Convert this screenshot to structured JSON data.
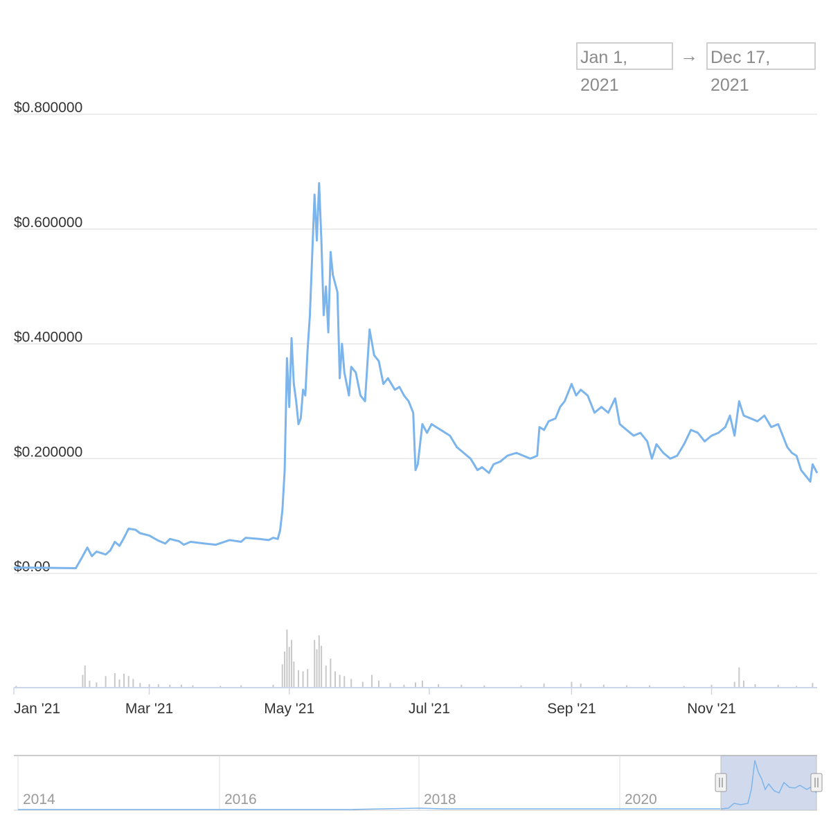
{
  "date_range": {
    "from": "Jan 1, 2021",
    "arrow": "→",
    "to": "Dec 17, 2021"
  },
  "chart_data": {
    "type": "line",
    "x_range": [
      "2021-01-01",
      "2021-12-17"
    ],
    "ylim": [
      0,
      0.8
    ],
    "y_ticks": [
      {
        "value": 0,
        "label": "$0.00"
      },
      {
        "value": 0.2,
        "label": "$0.200000"
      },
      {
        "value": 0.4,
        "label": "$0.400000"
      },
      {
        "value": 0.6,
        "label": "$0.600000"
      },
      {
        "value": 0.8,
        "label": "$0.800000"
      }
    ],
    "x_ticks": [
      {
        "date": "2021-01-01",
        "label": "Jan '21"
      },
      {
        "date": "2021-03-01",
        "label": "Mar '21"
      },
      {
        "date": "2021-05-01",
        "label": "May '21"
      },
      {
        "date": "2021-07-01",
        "label": "Jul '21"
      },
      {
        "date": "2021-09-01",
        "label": "Sep '21"
      },
      {
        "date": "2021-11-01",
        "label": "Nov '21"
      }
    ],
    "grid": true,
    "line_color": "#7cb5ec",
    "series": [
      {
        "points": [
          [
            "2021-01-01",
            0.01
          ],
          [
            "2021-01-10",
            0.01
          ],
          [
            "2021-01-28",
            0.009
          ],
          [
            "2021-01-31",
            0.03
          ],
          [
            "2021-02-02",
            0.045
          ],
          [
            "2021-02-04",
            0.03
          ],
          [
            "2021-02-06",
            0.038
          ],
          [
            "2021-02-10",
            0.033
          ],
          [
            "2021-02-12",
            0.04
          ],
          [
            "2021-02-14",
            0.055
          ],
          [
            "2021-02-16",
            0.048
          ],
          [
            "2021-02-18",
            0.062
          ],
          [
            "2021-02-20",
            0.078
          ],
          [
            "2021-02-23",
            0.076
          ],
          [
            "2021-02-25",
            0.07
          ],
          [
            "2021-03-01",
            0.066
          ],
          [
            "2021-03-05",
            0.057
          ],
          [
            "2021-03-08",
            0.052
          ],
          [
            "2021-03-10",
            0.06
          ],
          [
            "2021-03-14",
            0.056
          ],
          [
            "2021-03-16",
            0.05
          ],
          [
            "2021-03-19",
            0.055
          ],
          [
            "2021-03-25",
            0.052
          ],
          [
            "2021-03-30",
            0.05
          ],
          [
            "2021-04-05",
            0.058
          ],
          [
            "2021-04-10",
            0.055
          ],
          [
            "2021-04-12",
            0.062
          ],
          [
            "2021-04-18",
            0.06
          ],
          [
            "2021-04-22",
            0.058
          ],
          [
            "2021-04-24",
            0.062
          ],
          [
            "2021-04-26",
            0.06
          ],
          [
            "2021-04-27",
            0.075
          ],
          [
            "2021-04-28",
            0.11
          ],
          [
            "2021-04-29",
            0.18
          ],
          [
            "2021-04-30",
            0.375
          ],
          [
            "2021-05-01",
            0.29
          ],
          [
            "2021-05-02",
            0.41
          ],
          [
            "2021-05-03",
            0.33
          ],
          [
            "2021-05-04",
            0.3
          ],
          [
            "2021-05-05",
            0.26
          ],
          [
            "2021-05-06",
            0.27
          ],
          [
            "2021-05-07",
            0.32
          ],
          [
            "2021-05-08",
            0.31
          ],
          [
            "2021-05-09",
            0.39
          ],
          [
            "2021-05-10",
            0.45
          ],
          [
            "2021-05-12",
            0.66
          ],
          [
            "2021-05-13",
            0.58
          ],
          [
            "2021-05-14",
            0.68
          ],
          [
            "2021-05-15",
            0.58
          ],
          [
            "2021-05-16",
            0.45
          ],
          [
            "2021-05-17",
            0.5
          ],
          [
            "2021-05-18",
            0.42
          ],
          [
            "2021-05-19",
            0.56
          ],
          [
            "2021-05-20",
            0.52
          ],
          [
            "2021-05-22",
            0.49
          ],
          [
            "2021-05-23",
            0.34
          ],
          [
            "2021-05-24",
            0.4
          ],
          [
            "2021-05-25",
            0.35
          ],
          [
            "2021-05-27",
            0.31
          ],
          [
            "2021-05-28",
            0.36
          ],
          [
            "2021-05-30",
            0.35
          ],
          [
            "2021-06-01",
            0.31
          ],
          [
            "2021-06-03",
            0.3
          ],
          [
            "2021-06-05",
            0.425
          ],
          [
            "2021-06-07",
            0.38
          ],
          [
            "2021-06-09",
            0.37
          ],
          [
            "2021-06-11",
            0.33
          ],
          [
            "2021-06-13",
            0.34
          ],
          [
            "2021-06-16",
            0.32
          ],
          [
            "2021-06-18",
            0.325
          ],
          [
            "2021-06-20",
            0.31
          ],
          [
            "2021-06-22",
            0.3
          ],
          [
            "2021-06-24",
            0.28
          ],
          [
            "2021-06-25",
            0.18
          ],
          [
            "2021-06-26",
            0.19
          ],
          [
            "2021-06-28",
            0.26
          ],
          [
            "2021-06-30",
            0.245
          ],
          [
            "2021-07-02",
            0.26
          ],
          [
            "2021-07-06",
            0.25
          ],
          [
            "2021-07-10",
            0.24
          ],
          [
            "2021-07-13",
            0.22
          ],
          [
            "2021-07-16",
            0.21
          ],
          [
            "2021-07-19",
            0.2
          ],
          [
            "2021-07-22",
            0.18
          ],
          [
            "2021-07-24",
            0.185
          ],
          [
            "2021-07-27",
            0.175
          ],
          [
            "2021-07-29",
            0.19
          ],
          [
            "2021-08-01",
            0.195
          ],
          [
            "2021-08-04",
            0.205
          ],
          [
            "2021-08-08",
            0.21
          ],
          [
            "2021-08-11",
            0.205
          ],
          [
            "2021-08-14",
            0.2
          ],
          [
            "2021-08-17",
            0.205
          ],
          [
            "2021-08-18",
            0.255
          ],
          [
            "2021-08-20",
            0.25
          ],
          [
            "2021-08-22",
            0.265
          ],
          [
            "2021-08-25",
            0.27
          ],
          [
            "2021-08-27",
            0.29
          ],
          [
            "2021-08-29",
            0.3
          ],
          [
            "2021-09-01",
            0.33
          ],
          [
            "2021-09-03",
            0.31
          ],
          [
            "2021-09-05",
            0.32
          ],
          [
            "2021-09-08",
            0.31
          ],
          [
            "2021-09-11",
            0.28
          ],
          [
            "2021-09-14",
            0.29
          ],
          [
            "2021-09-17",
            0.28
          ],
          [
            "2021-09-20",
            0.305
          ],
          [
            "2021-09-22",
            0.26
          ],
          [
            "2021-09-25",
            0.25
          ],
          [
            "2021-09-28",
            0.24
          ],
          [
            "2021-10-01",
            0.245
          ],
          [
            "2021-10-04",
            0.23
          ],
          [
            "2021-10-06",
            0.2
          ],
          [
            "2021-10-08",
            0.225
          ],
          [
            "2021-10-11",
            0.21
          ],
          [
            "2021-10-14",
            0.2
          ],
          [
            "2021-10-17",
            0.205
          ],
          [
            "2021-10-20",
            0.225
          ],
          [
            "2021-10-23",
            0.25
          ],
          [
            "2021-10-26",
            0.245
          ],
          [
            "2021-10-29",
            0.23
          ],
          [
            "2021-11-01",
            0.24
          ],
          [
            "2021-11-04",
            0.245
          ],
          [
            "2021-11-07",
            0.255
          ],
          [
            "2021-11-09",
            0.275
          ],
          [
            "2021-11-11",
            0.24
          ],
          [
            "2021-11-13",
            0.3
          ],
          [
            "2021-11-15",
            0.275
          ],
          [
            "2021-11-18",
            0.27
          ],
          [
            "2021-11-21",
            0.265
          ],
          [
            "2021-11-24",
            0.275
          ],
          [
            "2021-11-27",
            0.255
          ],
          [
            "2021-11-30",
            0.26
          ],
          [
            "2021-12-02",
            0.24
          ],
          [
            "2021-12-04",
            0.22
          ],
          [
            "2021-12-06",
            0.21
          ],
          [
            "2021-12-08",
            0.205
          ],
          [
            "2021-12-10",
            0.18
          ],
          [
            "2021-12-12",
            0.17
          ],
          [
            "2021-12-14",
            0.16
          ],
          [
            "2021-12-15",
            0.19
          ],
          [
            "2021-12-17",
            0.175
          ]
        ]
      }
    ],
    "volume": {
      "bar_color": "#c8c8c8",
      "points": [
        [
          "2021-01-02",
          0.03
        ],
        [
          "2021-01-31",
          0.22
        ],
        [
          "2021-02-01",
          0.38
        ],
        [
          "2021-02-03",
          0.12
        ],
        [
          "2021-02-06",
          0.09
        ],
        [
          "2021-02-10",
          0.2
        ],
        [
          "2021-02-14",
          0.25
        ],
        [
          "2021-02-16",
          0.14
        ],
        [
          "2021-02-18",
          0.24
        ],
        [
          "2021-02-20",
          0.2
        ],
        [
          "2021-02-22",
          0.15
        ],
        [
          "2021-02-25",
          0.08
        ],
        [
          "2021-03-01",
          0.06
        ],
        [
          "2021-03-05",
          0.06
        ],
        [
          "2021-03-10",
          0.05
        ],
        [
          "2021-03-15",
          0.05
        ],
        [
          "2021-03-20",
          0.04
        ],
        [
          "2021-04-01",
          0.03
        ],
        [
          "2021-04-10",
          0.04
        ],
        [
          "2021-04-24",
          0.05
        ],
        [
          "2021-04-28",
          0.4
        ],
        [
          "2021-04-29",
          0.62
        ],
        [
          "2021-04-30",
          1.0
        ],
        [
          "2021-05-01",
          0.7
        ],
        [
          "2021-05-02",
          0.82
        ],
        [
          "2021-05-03",
          0.45
        ],
        [
          "2021-05-05",
          0.3
        ],
        [
          "2021-05-07",
          0.28
        ],
        [
          "2021-05-09",
          0.32
        ],
        [
          "2021-05-12",
          0.82
        ],
        [
          "2021-05-13",
          0.66
        ],
        [
          "2021-05-14",
          0.9
        ],
        [
          "2021-05-15",
          0.72
        ],
        [
          "2021-05-17",
          0.38
        ],
        [
          "2021-05-19",
          0.5
        ],
        [
          "2021-05-21",
          0.28
        ],
        [
          "2021-05-23",
          0.22
        ],
        [
          "2021-05-25",
          0.2
        ],
        [
          "2021-05-28",
          0.15
        ],
        [
          "2021-06-02",
          0.1
        ],
        [
          "2021-06-06",
          0.22
        ],
        [
          "2021-06-09",
          0.12
        ],
        [
          "2021-06-14",
          0.08
        ],
        [
          "2021-06-20",
          0.05
        ],
        [
          "2021-06-25",
          0.09
        ],
        [
          "2021-06-28",
          0.12
        ],
        [
          "2021-07-05",
          0.06
        ],
        [
          "2021-07-15",
          0.05
        ],
        [
          "2021-07-25",
          0.04
        ],
        [
          "2021-08-10",
          0.04
        ],
        [
          "2021-08-20",
          0.07
        ],
        [
          "2021-09-01",
          0.1
        ],
        [
          "2021-09-05",
          0.07
        ],
        [
          "2021-09-15",
          0.05
        ],
        [
          "2021-09-25",
          0.04
        ],
        [
          "2021-10-05",
          0.04
        ],
        [
          "2021-10-20",
          0.03
        ],
        [
          "2021-11-01",
          0.05
        ],
        [
          "2021-11-11",
          0.1
        ],
        [
          "2021-11-13",
          0.35
        ],
        [
          "2021-11-15",
          0.12
        ],
        [
          "2021-11-20",
          0.06
        ],
        [
          "2021-11-30",
          0.05
        ],
        [
          "2021-12-08",
          0.03
        ],
        [
          "2021-12-15",
          0.08
        ]
      ]
    },
    "navigator": {
      "x_ticks": [
        {
          "label": "2014"
        },
        {
          "label": "2016"
        },
        {
          "label": "2018"
        },
        {
          "label": "2020"
        }
      ]
    }
  }
}
